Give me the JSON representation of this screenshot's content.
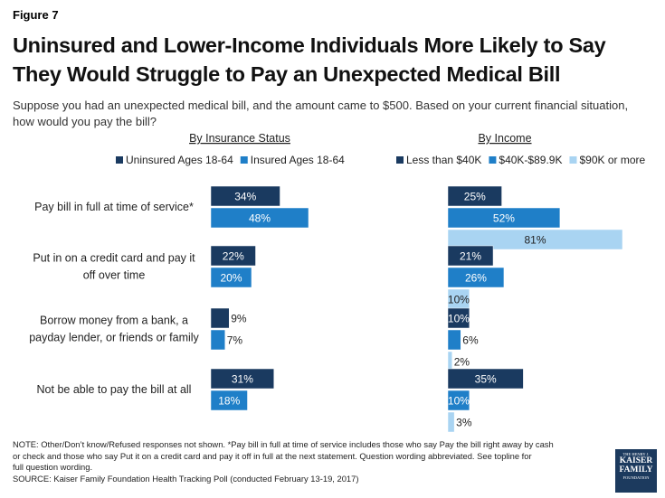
{
  "figure_label": "Figure 7",
  "title_lines": [
    "Uninsured and Lower-Income Individuals More Likely to Say",
    "They Would Struggle to Pay an Unexpected Medical Bill"
  ],
  "subtitle_lines": [
    "Suppose you had an unexpected medical bill, and the amount came to $500. Based on your current financial situation,",
    "how would you pay the bill?"
  ],
  "chart_data": [
    {
      "type": "bar",
      "orientation": "horizontal",
      "panel_title": "By Insurance Status",
      "categories": [
        "Pay bill in full at time of service*",
        "Put in on a credit card and pay it off over time",
        "Borrow money from a bank, a payday lender, or friends or family",
        "Not be able to pay the bill at all"
      ],
      "category_lines": [
        [
          "Pay bill in full at time of service*"
        ],
        [
          "Put in on a credit card and pay it",
          "off over time"
        ],
        [
          "Borrow money from a bank, a",
          "payday lender, or friends or family"
        ],
        [
          "Not be able to pay the bill at all"
        ]
      ],
      "series": [
        {
          "name": "Uninsured Ages 18-64",
          "values": [
            34,
            22,
            9,
            31
          ],
          "labels": [
            "34%",
            "22%",
            "9%",
            "31%"
          ],
          "color": "#1a3a60"
        },
        {
          "name": "Insured Ages 18-64",
          "values": [
            48,
            20,
            7,
            18
          ],
          "labels": [
            "48%",
            "20%",
            "7%",
            "18%"
          ],
          "color": "#1f7fc8"
        }
      ],
      "legend_position": "top",
      "grid": false
    },
    {
      "type": "bar",
      "orientation": "horizontal",
      "panel_title": "By Income",
      "categories": [
        "Pay bill in full at time of service*",
        "Put in on a credit card and pay it off over time",
        "Borrow money from a bank, a payday lender, or friends or family",
        "Not be able to pay the bill at all"
      ],
      "series": [
        {
          "name": "Less than $40K",
          "values": [
            25,
            21,
            10,
            35
          ],
          "labels": [
            "25%",
            "21%",
            "10%",
            "35%"
          ],
          "color": "#1a3a60"
        },
        {
          "name": "$40K-$89.9K",
          "values": [
            52,
            26,
            6,
            10
          ],
          "labels": [
            "52%",
            "26%",
            "6%",
            "10%"
          ],
          "color": "#1f7fc8"
        },
        {
          "name": "$90K or more",
          "values": [
            81,
            10,
            2,
            3
          ],
          "labels": [
            "81%",
            "10%",
            "2%",
            "3%"
          ],
          "color": "#a9d4f2"
        }
      ],
      "legend_position": "top",
      "grid": false
    }
  ],
  "notes": [
    "NOTE: Other/Don’t know/Refused responses not shown. *Pay bill in full at time of service includes those who say Pay the bill right away by cash",
    "or check and those who say Put it on a credit card and pay it off in full at the next statement.  Question wording abbreviated.  See topline for",
    "full question wording.",
    "SOURCE: Kaiser Family Foundation Health Tracking Poll (conducted February 13-19, 2017)"
  ],
  "logo": {
    "line1": "THE HENRY J.",
    "line2": "KAISER",
    "line3": "FAMILY",
    "line4": "FOUNDATION"
  }
}
